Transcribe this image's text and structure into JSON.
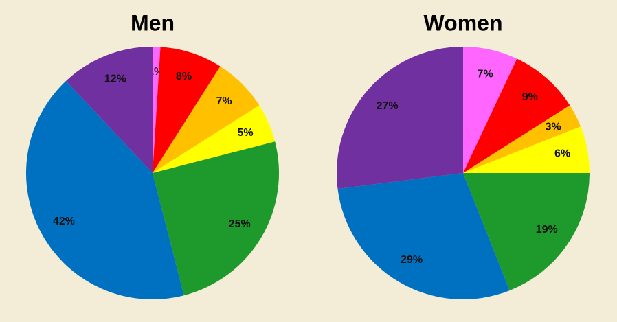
{
  "chart_data": [
    {
      "type": "pie",
      "title": "Men",
      "values": [
        1,
        8,
        7,
        5,
        25,
        42,
        12
      ],
      "value_labels": [
        "1%",
        "8%",
        "7%",
        "5%",
        "25%",
        "42%",
        "12%"
      ],
      "colors": [
        "#ff66ff",
        "#ff0000",
        "#ffc000",
        "#ffff00",
        "#1e9a2c",
        "#0070c0",
        "#7030a0"
      ]
    },
    {
      "type": "pie",
      "title": "Women",
      "values": [
        7,
        9,
        3,
        6,
        19,
        29,
        27
      ],
      "value_labels": [
        "7%",
        "9%",
        "3%",
        "6%",
        "19%",
        "29%",
        "27%"
      ],
      "colors": [
        "#ff66ff",
        "#ff0000",
        "#ffc000",
        "#ffff00",
        "#1e9a2c",
        "#0070c0",
        "#7030a0"
      ]
    }
  ]
}
